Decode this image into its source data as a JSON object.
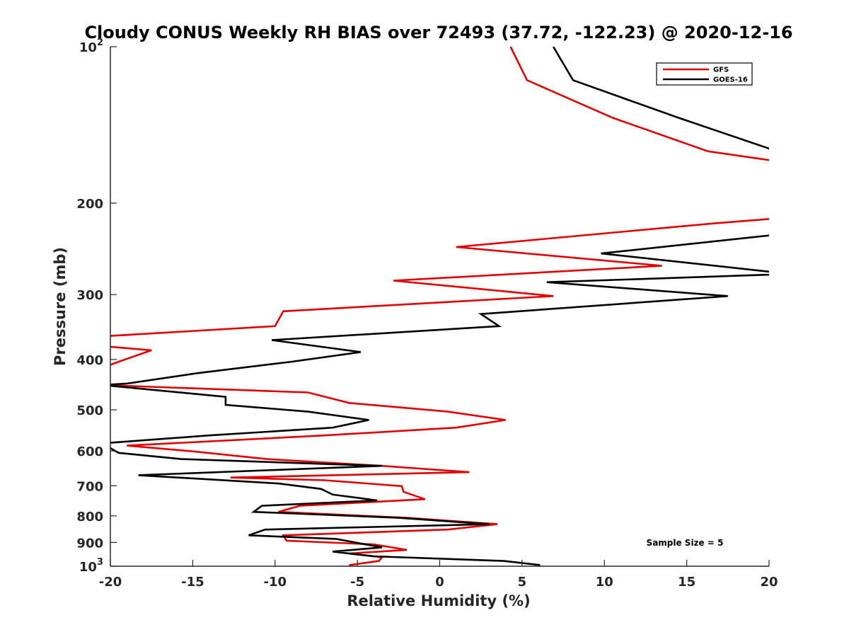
{
  "chart_data": {
    "type": "line",
    "title": "Cloudy CONUS Weekly RH BIAS over 72493 (37.72, -122.23) @ 2020-12-16",
    "xlabel": "Relative Humidity (%)",
    "ylabel": "Pressure (mb)",
    "xlim": [
      -20,
      20
    ],
    "ylim": [
      100,
      1000
    ],
    "y_scale": "log",
    "y_reversed": true,
    "grid": false,
    "legend_position": "top-right",
    "x_ticks": [
      "-20",
      "-15",
      "-10",
      "-5",
      "0",
      "5",
      "10",
      "15",
      "20"
    ],
    "y_ticks": [
      {
        "value": 100,
        "base": "10",
        "exp": "2"
      },
      {
        "value": 200,
        "label": "200"
      },
      {
        "value": 300,
        "label": "300"
      },
      {
        "value": 400,
        "label": "400"
      },
      {
        "value": 500,
        "label": "500"
      },
      {
        "value": 600,
        "label": "600"
      },
      {
        "value": 700,
        "label": "700"
      },
      {
        "value": 800,
        "label": "800"
      },
      {
        "value": 900,
        "label": "900"
      },
      {
        "value": 1000,
        "base": "10",
        "exp": "3"
      }
    ],
    "annotation": "Sample Size = 5",
    "series": [
      {
        "name": "GFS",
        "color": "#e00000",
        "points": [
          [
            4.3,
            100
          ],
          [
            5.3,
            116
          ],
          [
            10.5,
            137
          ],
          [
            16.3,
            159
          ],
          [
            21,
            167
          ],
          [
            20.5,
            214
          ],
          [
            16.5,
            219
          ],
          [
            1.0,
            243
          ],
          [
            13.5,
            264
          ],
          [
            -2.8,
            282
          ],
          [
            6.9,
            302
          ],
          [
            -9.5,
            323
          ],
          [
            -10.0,
            345
          ],
          [
            -20.5,
            361
          ],
          [
            -20.5,
            377
          ],
          [
            -17.5,
            384
          ],
          [
            -19.5,
            404
          ],
          [
            -20.5,
            415
          ],
          [
            -20.5,
            448
          ],
          [
            -8.0,
            463
          ],
          [
            -5.5,
            485
          ],
          [
            0.5,
            504
          ],
          [
            4.0,
            523
          ],
          [
            1.0,
            541
          ],
          [
            -7.0,
            560
          ],
          [
            -19.0,
            586
          ],
          [
            -15.0,
            601
          ],
          [
            -10.5,
            622
          ],
          [
            -3.5,
            641
          ],
          [
            1.8,
            659
          ],
          [
            -12.7,
            675
          ],
          [
            -7.0,
            683
          ],
          [
            -2.3,
            701
          ],
          [
            -2.2,
            719
          ],
          [
            -0.9,
            743
          ],
          [
            -8.5,
            765
          ],
          [
            -9.8,
            786
          ],
          [
            -2.0,
            807
          ],
          [
            3.5,
            830
          ],
          [
            0.5,
            850
          ],
          [
            -9.5,
            872
          ],
          [
            -9.3,
            893
          ],
          [
            -4.0,
            908
          ],
          [
            -2.0,
            930
          ],
          [
            -5.5,
            945
          ],
          [
            -3.5,
            961
          ],
          [
            -3.7,
            977
          ],
          [
            -5.5,
            995
          ]
        ]
      },
      {
        "name": "GOES-16",
        "color": "#000000",
        "points": [
          [
            6.9,
            100
          ],
          [
            8.1,
            116
          ],
          [
            14.5,
            137
          ],
          [
            20.5,
            159
          ],
          [
            21,
            160
          ],
          [
            20.5,
            230
          ],
          [
            9.8,
            250
          ],
          [
            20.0,
            271
          ],
          [
            21,
            274
          ],
          [
            6.5,
            284
          ],
          [
            17.5,
            302
          ],
          [
            2.5,
            327
          ],
          [
            3.6,
            345
          ],
          [
            -10.2,
            367
          ],
          [
            -4.8,
            387
          ],
          [
            -9.0,
            404
          ],
          [
            -14.7,
            425
          ],
          [
            -19.0,
            445
          ],
          [
            -20.5,
            448
          ],
          [
            -13.0,
            472
          ],
          [
            -13.0,
            489
          ],
          [
            -8.0,
            504
          ],
          [
            -4.3,
            523
          ],
          [
            -6.5,
            541
          ],
          [
            -14.0,
            560
          ],
          [
            -20.5,
            580
          ],
          [
            -19.5,
            605
          ],
          [
            -15.7,
            622
          ],
          [
            -3.5,
            641
          ],
          [
            -18.3,
            668
          ],
          [
            -9.8,
            693
          ],
          [
            -7.2,
            710
          ],
          [
            -6.5,
            728
          ],
          [
            -3.8,
            747
          ],
          [
            -10.8,
            765
          ],
          [
            -11.3,
            786
          ],
          [
            -2.5,
            807
          ],
          [
            3.0,
            830
          ],
          [
            -10.6,
            850
          ],
          [
            -11.6,
            872
          ],
          [
            -6.3,
            886
          ],
          [
            -4.5,
            908
          ],
          [
            -3.5,
            920
          ],
          [
            -6.5,
            937
          ],
          [
            -4.0,
            957
          ],
          [
            3.9,
            977
          ],
          [
            6.1,
            995
          ]
        ]
      }
    ]
  }
}
